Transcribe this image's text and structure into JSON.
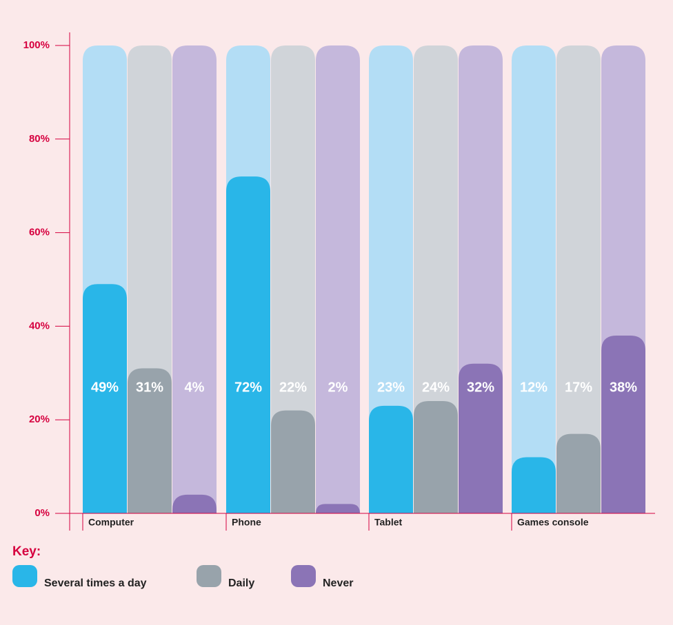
{
  "chart_data": {
    "type": "bar",
    "categories": [
      "Computer",
      "Phone",
      "Tablet",
      "Games console"
    ],
    "series": [
      {
        "name": "Several times a day",
        "color": "#29b6e8",
        "track_color": "#b3ddf5",
        "values": [
          49,
          72,
          23,
          12
        ],
        "value_labels": [
          "49%",
          "72%",
          "23%",
          "12%"
        ]
      },
      {
        "name": "Daily",
        "color": "#98a3ab",
        "track_color": "#d0d4d9",
        "values": [
          31,
          22,
          24,
          17
        ],
        "value_labels": [
          "31%",
          "22%",
          "24%",
          "17%"
        ]
      },
      {
        "name": "Never",
        "color": "#8b74b6",
        "track_color": "#c5b8dc",
        "values": [
          4,
          2,
          32,
          38
        ],
        "value_labels": [
          "4%",
          "2%",
          "32%",
          "38%"
        ]
      }
    ],
    "ylim": [
      0,
      100
    ],
    "yticks": [
      {
        "value": 0,
        "label": "0%"
      },
      {
        "value": 20,
        "label": "20%"
      },
      {
        "value": 40,
        "label": "40%"
      },
      {
        "value": 60,
        "label": "60%"
      },
      {
        "value": 80,
        "label": "80%"
      },
      {
        "value": 100,
        "label": "100%"
      }
    ],
    "legend_title": "Key:"
  }
}
